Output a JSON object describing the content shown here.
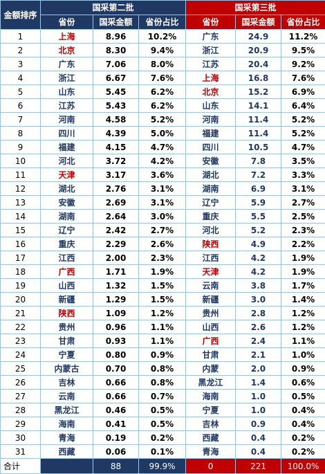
{
  "header": {
    "rank": "金额排序",
    "batch2": "国采第二批",
    "batch3": "国采第三批",
    "province": "省份",
    "amount": "国采金额",
    "share": "省份占比"
  },
  "table": {
    "rows": [
      {
        "rank": 1,
        "b2": [
          "上海",
          "8.96",
          "10.2%"
        ],
        "b3": [
          "广东",
          "24.9",
          "11.2%"
        ],
        "red": [
          true,
          false
        ]
      },
      {
        "rank": 2,
        "b2": [
          "北京",
          "8.30",
          "9.4%"
        ],
        "b3": [
          "浙江",
          "20.9",
          "9.5%"
        ],
        "red": [
          true,
          false
        ]
      },
      {
        "rank": 3,
        "b2": [
          "广东",
          "7.06",
          "8.0%"
        ],
        "b3": [
          "江苏",
          "20.4",
          "9.2%"
        ],
        "red": [
          false,
          false
        ]
      },
      {
        "rank": 4,
        "b2": [
          "浙江",
          "6.67",
          "7.6%"
        ],
        "b3": [
          "上海",
          "16.8",
          "7.6%"
        ],
        "red": [
          false,
          true
        ]
      },
      {
        "rank": 5,
        "b2": [
          "山东",
          "5.45",
          "6.2%"
        ],
        "b3": [
          "北京",
          "15.2",
          "6.9%"
        ],
        "red": [
          false,
          true
        ]
      },
      {
        "rank": 6,
        "b2": [
          "江苏",
          "5.43",
          "6.2%"
        ],
        "b3": [
          "山东",
          "14.1",
          "6.4%"
        ],
        "red": [
          false,
          false
        ]
      },
      {
        "rank": 7,
        "b2": [
          "河南",
          "4.58",
          "5.2%"
        ],
        "b3": [
          "河南",
          "11.4",
          "5.2%"
        ],
        "red": [
          false,
          false
        ]
      },
      {
        "rank": 8,
        "b2": [
          "四川",
          "4.39",
          "5.0%"
        ],
        "b3": [
          "福建",
          "11.4",
          "5.2%"
        ],
        "red": [
          false,
          false
        ]
      },
      {
        "rank": 9,
        "b2": [
          "福建",
          "4.15",
          "4.7%"
        ],
        "b3": [
          "四川",
          "10.5",
          "4.7%"
        ],
        "red": [
          false,
          false
        ]
      },
      {
        "rank": 10,
        "b2": [
          "河北",
          "3.72",
          "4.2%"
        ],
        "b3": [
          "安徽",
          "7.8",
          "3.5%"
        ],
        "red": [
          false,
          false
        ]
      },
      {
        "rank": 11,
        "b2": [
          "天津",
          "3.17",
          "3.6%"
        ],
        "b3": [
          "湖北",
          "7.2",
          "3.3%"
        ],
        "red": [
          true,
          false
        ]
      },
      {
        "rank": 12,
        "b2": [
          "湖北",
          "2.76",
          "3.1%"
        ],
        "b3": [
          "湖南",
          "6.9",
          "3.1%"
        ],
        "red": [
          false,
          false
        ]
      },
      {
        "rank": 13,
        "b2": [
          "安徽",
          "2.69",
          "3.1%"
        ],
        "b3": [
          "辽宁",
          "5.9",
          "2.7%"
        ],
        "red": [
          false,
          false
        ]
      },
      {
        "rank": 14,
        "b2": [
          "湖南",
          "2.64",
          "3.0%"
        ],
        "b3": [
          "重庆",
          "5.5",
          "2.5%"
        ],
        "red": [
          false,
          false
        ]
      },
      {
        "rank": 15,
        "b2": [
          "辽宁",
          "2.42",
          "2.7%"
        ],
        "b3": [
          "河北",
          "5.2",
          "2.3%"
        ],
        "red": [
          false,
          false
        ]
      },
      {
        "rank": 16,
        "b2": [
          "重庆",
          "2.29",
          "2.6%"
        ],
        "b3": [
          "陕西",
          "4.9",
          "2.2%"
        ],
        "red": [
          false,
          true
        ]
      },
      {
        "rank": 17,
        "b2": [
          "江西",
          "2.00",
          "2.3%"
        ],
        "b3": [
          "江西",
          "4.2",
          "1.9%"
        ],
        "red": [
          false,
          false
        ]
      },
      {
        "rank": 18,
        "b2": [
          "广西",
          "1.71",
          "1.9%"
        ],
        "b3": [
          "天津",
          "4.2",
          "1.9%"
        ],
        "red": [
          true,
          true
        ]
      },
      {
        "rank": 19,
        "b2": [
          "山西",
          "1.32",
          "1.5%"
        ],
        "b3": [
          "云南",
          "3.8",
          "1.7%"
        ],
        "red": [
          false,
          false
        ]
      },
      {
        "rank": 20,
        "b2": [
          "新疆",
          "1.29",
          "1.5%"
        ],
        "b3": [
          "新疆",
          "3.0",
          "1.4%"
        ],
        "red": [
          false,
          false
        ]
      },
      {
        "rank": 21,
        "b2": [
          "陕西",
          "1.09",
          "1.2%"
        ],
        "b3": [
          "贵州",
          "2.8",
          "1.2%"
        ],
        "red": [
          true,
          false
        ]
      },
      {
        "rank": 22,
        "b2": [
          "贵州",
          "0.96",
          "1.1%"
        ],
        "b3": [
          "山西",
          "2.6",
          "1.2%"
        ],
        "red": [
          false,
          false
        ]
      },
      {
        "rank": 23,
        "b2": [
          "甘肃",
          "0.93",
          "1.1%"
        ],
        "b3": [
          "广西",
          "2.4",
          "1.1%"
        ],
        "red": [
          false,
          true
        ]
      },
      {
        "rank": 24,
        "b2": [
          "宁夏",
          "0.80",
          "0.9%"
        ],
        "b3": [
          "甘肃",
          "2.1",
          "1.0%"
        ],
        "red": [
          false,
          false
        ]
      },
      {
        "rank": 25,
        "b2": [
          "内蒙古",
          "0.70",
          "0.8%"
        ],
        "b3": [
          "内蒙",
          "2.0",
          "0.9%"
        ],
        "red": [
          false,
          false
        ]
      },
      {
        "rank": 26,
        "b2": [
          "吉林",
          "0.66",
          "0.8%"
        ],
        "b3": [
          "黑龙江",
          "1.4",
          "0.6%"
        ],
        "red": [
          false,
          false
        ]
      },
      {
        "rank": 27,
        "b2": [
          "云南",
          "0.66",
          "0.7%"
        ],
        "b3": [
          "海南",
          "1.0",
          "0.5%"
        ],
        "red": [
          false,
          false
        ]
      },
      {
        "rank": 28,
        "b2": [
          "黑龙江",
          "0.46",
          "0.5%"
        ],
        "b3": [
          "宁夏",
          "1.0",
          "0.4%"
        ],
        "red": [
          false,
          false
        ]
      },
      {
        "rank": 29,
        "b2": [
          "海南",
          "0.41",
          "0.5%"
        ],
        "b3": [
          "吉林",
          "0.9",
          "0.4%"
        ],
        "red": [
          false,
          false
        ]
      },
      {
        "rank": 30,
        "b2": [
          "青海",
          "0.19",
          "0.2%"
        ],
        "b3": [
          "西藏",
          "0.4",
          "0.2%"
        ],
        "red": [
          false,
          false
        ]
      },
      {
        "rank": 31,
        "b2": [
          "西藏",
          "0.06",
          "0.1%"
        ],
        "b3": [
          "青海",
          "0.4",
          "0.2%"
        ],
        "red": [
          false,
          false
        ]
      }
    ],
    "total": {
      "label": "合计",
      "b2": [
        "88",
        "99.9%"
      ],
      "b3": [
        "0",
        "221",
        "100.0%"
      ]
    }
  }
}
